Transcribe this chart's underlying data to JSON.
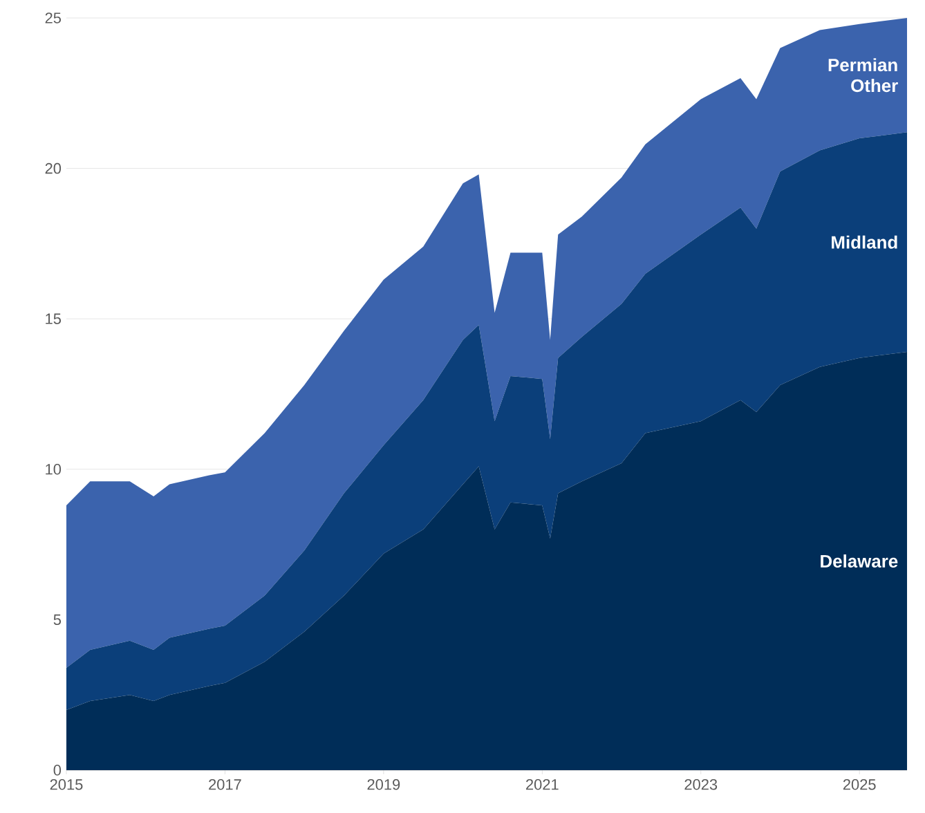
{
  "chart_data": {
    "type": "area",
    "stacked": true,
    "grid": "y",
    "x": [
      2015.0,
      2015.3,
      2015.8,
      2016.1,
      2016.3,
      2016.8,
      2017.0,
      2017.5,
      2018.0,
      2018.5,
      2019.0,
      2019.5,
      2020.0,
      2020.2,
      2020.4,
      2020.6,
      2021.0,
      2021.1,
      2021.2,
      2021.5,
      2022.0,
      2022.3,
      2023.0,
      2023.5,
      2023.7,
      2024.0,
      2024.5,
      2025.0,
      2025.6
    ],
    "series": [
      {
        "name": "Delaware",
        "color": "#002d58",
        "values": [
          2.0,
          2.3,
          2.5,
          2.3,
          2.5,
          2.8,
          2.9,
          3.6,
          4.6,
          5.8,
          7.2,
          8.0,
          9.5,
          10.1,
          8.0,
          8.9,
          8.8,
          7.7,
          9.2,
          9.6,
          10.2,
          11.2,
          11.6,
          12.3,
          11.9,
          12.8,
          13.4,
          13.7,
          13.9
        ]
      },
      {
        "name": "Midland",
        "color": "#0b3f7a",
        "values": [
          1.4,
          1.7,
          1.8,
          1.7,
          1.9,
          1.9,
          1.9,
          2.2,
          2.7,
          3.4,
          3.6,
          4.3,
          4.8,
          4.7,
          3.6,
          4.2,
          4.2,
          3.3,
          4.5,
          4.8,
          5.3,
          5.3,
          6.2,
          6.4,
          6.1,
          7.1,
          7.2,
          7.3,
          7.3
        ]
      },
      {
        "name": "Permian Other",
        "color": "#3b63ad",
        "values": [
          5.4,
          5.6,
          5.3,
          5.1,
          5.1,
          5.1,
          5.1,
          5.4,
          5.5,
          5.4,
          5.5,
          5.1,
          5.2,
          5.0,
          3.6,
          4.1,
          4.2,
          3.3,
          4.1,
          4.0,
          4.2,
          4.3,
          4.5,
          4.3,
          4.3,
          4.1,
          4.0,
          3.8,
          3.8
        ]
      }
    ],
    "xlim": [
      2015,
      2025.6
    ],
    "ylim": [
      0,
      25
    ],
    "xticks": [
      2015,
      2017,
      2019,
      2021,
      2023,
      2025
    ],
    "yticks": [
      0,
      5,
      10,
      15,
      20,
      25
    ]
  }
}
